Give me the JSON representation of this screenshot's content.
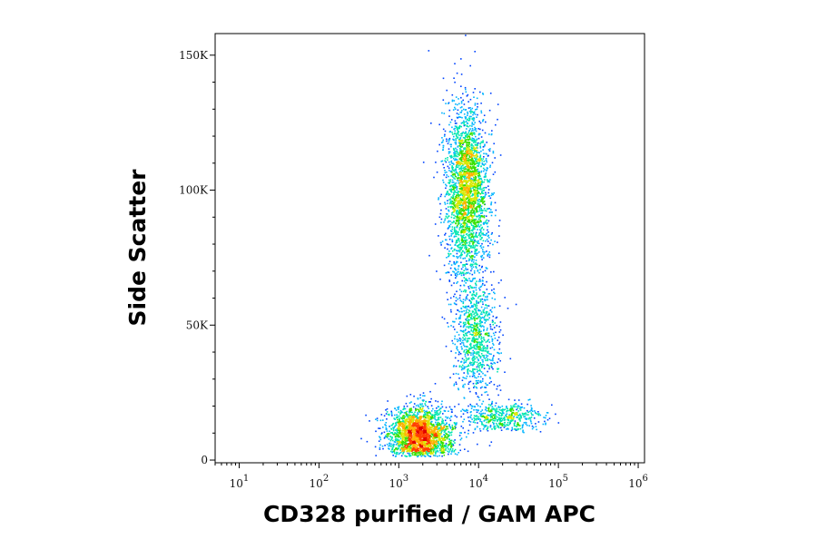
{
  "chart_data": {
    "type": "scatter",
    "title": "",
    "xlabel": "CD328 purified / GAM APC",
    "ylabel": "Side Scatter",
    "x_scale": "log",
    "xlim": [
      5,
      1200000
    ],
    "ylim": [
      -1000,
      158000
    ],
    "x_ticks": [
      {
        "value": 10,
        "base": "10",
        "exp": "1"
      },
      {
        "value": 100,
        "base": "10",
        "exp": "2"
      },
      {
        "value": 1000,
        "base": "10",
        "exp": "3"
      },
      {
        "value": 10000,
        "base": "10",
        "exp": "4"
      },
      {
        "value": 100000,
        "base": "10",
        "exp": "5"
      },
      {
        "value": 1000000,
        "base": "10",
        "exp": "6"
      }
    ],
    "y_ticks": [
      {
        "value": 0,
        "label": "0"
      },
      {
        "value": 50000,
        "label": "50K"
      },
      {
        "value": 100000,
        "label": "100K"
      },
      {
        "value": 150000,
        "label": "150K"
      }
    ],
    "color_scale": [
      "#0000cc",
      "#0044ff",
      "#00b4ff",
      "#00e6b0",
      "#38e000",
      "#d8e800",
      "#ffb000",
      "#ff4000",
      "#e00000"
    ],
    "populations": [
      {
        "center_x": 1800,
        "center_y": 10000,
        "sd_log_x": 0.2,
        "sd_y": 5000,
        "n": 2200
      },
      {
        "center_x": 7000,
        "center_y": 100000,
        "sd_log_x": 0.14,
        "sd_y": 16000,
        "n": 2600
      },
      {
        "center_x": 9000,
        "center_y": 45000,
        "sd_log_x": 0.14,
        "sd_y": 11000,
        "n": 900
      },
      {
        "center_x": 20000,
        "center_y": 16000,
        "sd_log_x": 0.25,
        "sd_y": 2500,
        "n": 500
      }
    ]
  }
}
